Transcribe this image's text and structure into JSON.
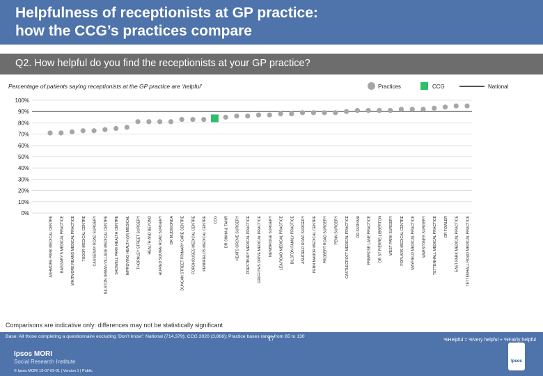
{
  "title_line1": "Helpfulness of receptionists at GP practice:",
  "title_line2": "how the CCG’s practices compare",
  "question": "Q2. How helpful do you find the receptionists at your GP practice?",
  "subtitle": "Percentage of patients saying receptionists at the GP practice are ‘helpful’",
  "legend": {
    "practices": "Practices",
    "ccg": "CCG",
    "national": "National"
  },
  "colors": {
    "header": "#4f73ab",
    "point": "#a6a6a6",
    "ccg": "#2fbf6b",
    "national": "#555555",
    "grid": "#d9d9d9"
  },
  "footnote": "Comparisons are indicative only: differences may not be statistically significant",
  "base_text": "Base: All those completing a questionnaire excluding ‘Don’t know’: National (714,379); CCG 2020 (3,866); Practice bases range from 65 to 130",
  "definition": "%Helpful = %Very helpful + %Fairly helpful",
  "page_number": "17",
  "logo": {
    "name": "Ipsos MORI",
    "sub": "Social Research Institute",
    "emblem": "Ipsos"
  },
  "copyright": "© Ipsos MORI    19-07-09-01 | Version 1 | Public",
  "chart_data": {
    "type": "scatter",
    "title": "Percentage of patients saying receptionists at the GP practice are ‘helpful’",
    "ylim": [
      0,
      100
    ],
    "yticks": [
      "0%",
      "10%",
      "20%",
      "30%",
      "40%",
      "50%",
      "60%",
      "70%",
      "80%",
      "90%",
      "100%"
    ],
    "national": 90,
    "ccg_category": "CCG",
    "categories": [
      "ASHMORE PARK MEDICAL CENTRE",
      "BAGGARY'S MEDICAL PRACTICE",
      "WHITMORE REANS MEDICAL PRACTICE",
      "TUDOR MEDICAL CENTRE",
      "CAUSEWAY ROAD SURGERY",
      "BILSTON URBAN VILLAGE MEDICAL CENTRE",
      "SHOWELL PARK HEALTH CENTRE",
      "IMPROVING HEALTH (W) MEDICAL",
      "THORNLEY STREET SURGERY",
      "HEALTH AND BEYOND",
      "ALFRED SQUIRE ROAD SURGERY",
      "DR MUDIGONDA",
      "DUNCAN STREET PRIMARY CARE CENTRE",
      "FORDHOUSES MEDICAL CENTRE",
      "PENNFIELDS MEDICAL CENTRE",
      "CCG",
      "DR SINHA & TAHIR",
      "KEATS GROVE SURGERY",
      "PRESTBURY MEDICAL PRACTICE",
      "GRIFFITHS DRIVE MEDICAL PRACTICE",
      "NEWBRIDGE SURGERY",
      "LEA ROAD MEDICAL PRACTICE",
      "BILSTON FAMILY PRACTICE",
      "ASHFIELD ROAD SURGERY",
      "PENN MANOR MEDICAL CENTRE",
      "PROBERT ROAD SURGERY",
      "PENN SURGERY",
      "CASTLECROFT MEDICAL PRACTICE",
      "DR SURYANI",
      "PRIMROSE LANE PRACTICE",
      "DR ST PIERRE-LIBBERTON",
      "WEST PARK SURGERY",
      "POPLARS MEDICAL CENTRE",
      "MAYFIELD MEDICAL PRACTICE",
      "WARSTONES SURGERY",
      "TETTENHALL MEDICAL PRACTICE",
      "DR FOWLER",
      "EAST PARK MEDICAL PRACTICE",
      "TETTENHALL ROAD MEDICAL PRACTICE"
    ],
    "values": [
      71,
      71,
      72,
      73,
      73,
      74,
      75,
      76,
      81,
      81,
      81,
      81,
      83,
      83,
      83,
      84,
      85,
      86,
      86,
      87,
      87,
      88,
      88,
      89,
      89,
      89,
      89,
      90,
      91,
      91,
      91,
      91,
      92,
      92,
      92,
      93,
      94,
      95,
      95
    ]
  }
}
